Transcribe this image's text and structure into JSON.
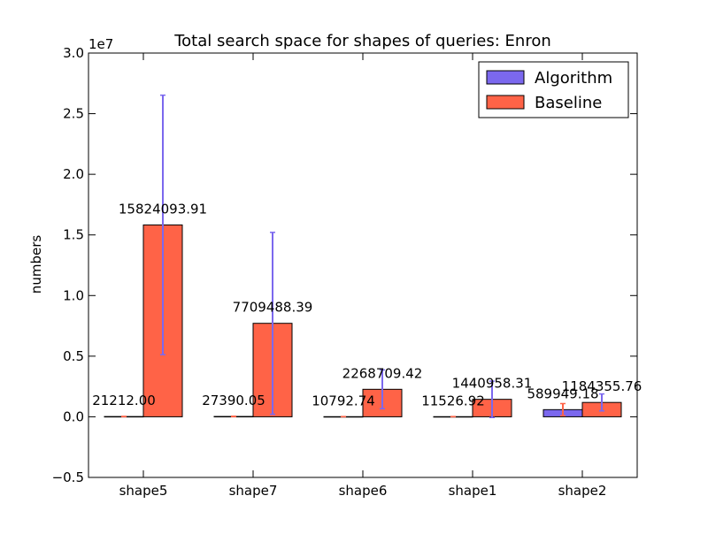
{
  "chart_data": {
    "type": "bar",
    "title": "Total search space for shapes of queries: Enron",
    "xlabel": "",
    "ylabel": "numbers",
    "y_scale_label": "1e7",
    "y_scale": 10000000,
    "ylim": [
      -5000000,
      30000000
    ],
    "yticks": [
      -5000000,
      0,
      5000000,
      10000000,
      15000000,
      20000000,
      25000000,
      30000000
    ],
    "ytick_labels": [
      "−0.5",
      "0.0",
      "0.5",
      "1.0",
      "1.5",
      "2.0",
      "2.5",
      "3.0"
    ],
    "categories": [
      "shape5",
      "shape7",
      "shape6",
      "shape1",
      "shape2"
    ],
    "grid": false,
    "legend_position": "top-right",
    "series": [
      {
        "name": "Algorithm",
        "color": "#7b68ee",
        "values": [
          21212.0,
          27390.05,
          10792.74,
          11526.92,
          589949.18
        ],
        "labels": [
          "21212.00",
          "27390.05",
          "10792.74",
          "11526.92",
          "589949.18"
        ],
        "errors": [
          15000,
          20000,
          8000,
          9000,
          500000
        ],
        "error_color": "#ff6347"
      },
      {
        "name": "Baseline",
        "color": "#ff6347",
        "values": [
          15824093.91,
          7709488.39,
          2268709.42,
          1440958.31,
          1184355.76
        ],
        "labels": [
          "15824093.91",
          "7709488.39",
          "2268709.42",
          "1440958.31",
          "1184355.76"
        ],
        "errors": [
          10700000,
          7500000,
          1600000,
          1500000,
          700000
        ],
        "error_color": "#7b68ee"
      }
    ]
  }
}
